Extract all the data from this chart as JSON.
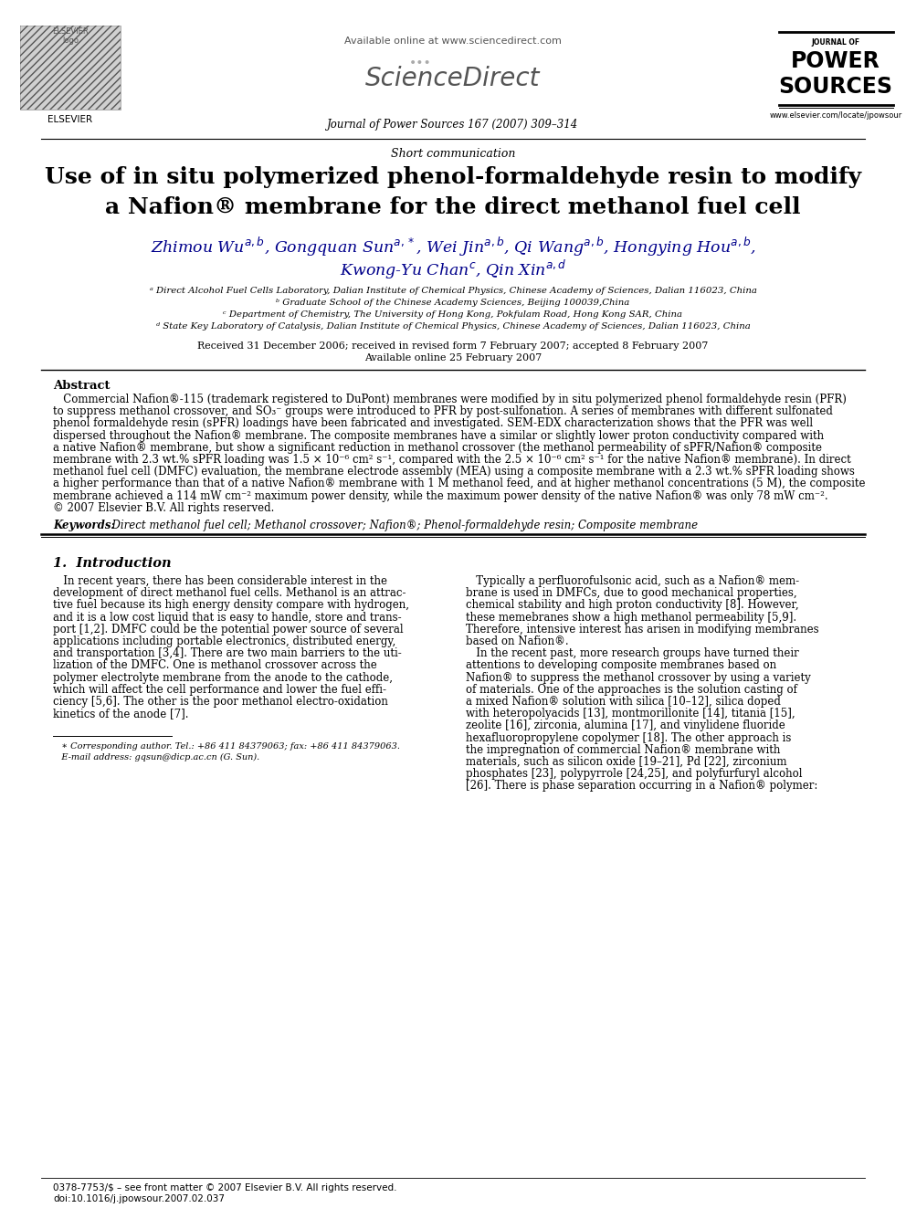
{
  "bg_color": "#ffffff",
  "title_line1": "Use of in situ polymerized phenol-formaldehyde resin to modify",
  "title_line2": "a Nafion® membrane for the direct methanol fuel cell",
  "section_label": "Short communication",
  "affil_a": "ᵃ Direct Alcohol Fuel Cells Laboratory, Dalian Institute of Chemical Physics, Chinese Academy of Sciences, Dalian 116023, China",
  "affil_b": "ᵇ Graduate School of the Chinese Academy Sciences, Beijing 100039,China",
  "affil_c": "ᶜ Department of Chemistry, The University of Hong Kong, Pokfulam Road, Hong Kong SAR, China",
  "affil_d": "ᵈ State Key Laboratory of Catalysis, Dalian Institute of Chemical Physics, Chinese Academy of Sciences, Dalian 116023, China",
  "received": "Received 31 December 2006; received in revised form 7 February 2007; accepted 8 February 2007",
  "available": "Available online 25 February 2007",
  "journal_name": "Journal of Power Sources 167 (2007) 309–314",
  "available_online": "Available online at www.sciencedirect.com",
  "website": "www.elsevier.com/locate/jpowsour",
  "abstract_title": "Abstract",
  "keywords_label": "Keywords:",
  "keywords_text": "  Direct methanol fuel cell; Methanol crossover; Nafion®; Phenol-formaldehyde resin; Composite membrane",
  "issn": "0378-7753/$ – see front matter © 2007 Elsevier B.V. All rights reserved.",
  "doi": "doi:10.1016/j.jpowsour.2007.02.037",
  "abstract_lines": [
    "   Commercial Nafion®-115 (trademark registered to DuPont) membranes were modified by in situ polymerized phenol formaldehyde resin (PFR)",
    "to suppress methanol crossover, and SO₃⁻ groups were introduced to PFR by post-sulfonation. A series of membranes with different sulfonated",
    "phenol formaldehyde resin (sPFR) loadings have been fabricated and investigated. SEM-EDX characterization shows that the PFR was well",
    "dispersed throughout the Nafion® membrane. The composite membranes have a similar or slightly lower proton conductivity compared with",
    "a native Nafion® membrane, but show a significant reduction in methanol crossover (the methanol permeability of sPFR/Nafion® composite",
    "membrane with 2.3 wt.% sPFR loading was 1.5 × 10⁻⁶ cm² s⁻¹, compared with the 2.5 × 10⁻⁶ cm² s⁻¹ for the native Nafion® membrane). In direct",
    "methanol fuel cell (DMFC) evaluation, the membrane electrode assembly (MEA) using a composite membrane with a 2.3 wt.% sPFR loading shows",
    "a higher performance than that of a native Nafion® membrane with 1 M methanol feed, and at higher methanol concentrations (5 M), the composite",
    "membrane achieved a 114 mW cm⁻² maximum power density, while the maximum power density of the native Nafion® was only 78 mW cm⁻².",
    "© 2007 Elsevier B.V. All rights reserved."
  ],
  "intro_col1_lines": [
    "   In recent years, there has been considerable interest in the",
    "development of direct methanol fuel cells. Methanol is an attrac-",
    "tive fuel because its high energy density compare with hydrogen,",
    "and it is a low cost liquid that is easy to handle, store and trans-",
    "port [1,2]. DMFC could be the potential power source of several",
    "applications including portable electronics, distributed energy,",
    "and transportation [3,4]. There are two main barriers to the uti-",
    "lization of the DMFC. One is methanol crossover across the",
    "polymer electrolyte membrane from the anode to the cathode,",
    "which will affect the cell performance and lower the fuel effi-",
    "ciency [5,6]. The other is the poor methanol electro-oxidation",
    "kinetics of the anode [7]."
  ],
  "intro_col2_lines": [
    "   Typically a perfluorofulsonic acid, such as a Nafion® mem-",
    "brane is used in DMFCs, due to good mechanical properties,",
    "chemical stability and high proton conductivity [8]. However,",
    "these memebranes show a high methanol permeability [5,9].",
    "Therefore, intensive interest has arisen in modifying membranes",
    "based on Nafion®.",
    "   In the recent past, more research groups have turned their",
    "attentions to developing composite membranes based on",
    "Nafion® to suppress the methanol crossover by using a variety",
    "of materials. One of the approaches is the solution casting of",
    "a mixed Nafion® solution with silica [10–12], silica doped",
    "with heteropolyacids [13], montmorillonite [14], titania [15],",
    "zeolite [16], zirconia, alumina [17], and vinylidene fluoride",
    "hexafluoropropylene copolymer [18]. The other approach is",
    "the impregnation of commercial Nafion® membrane with",
    "materials, such as silicon oxide [19–21], Pd [22], zirconium",
    "phosphates [23], polypyrrole [24,25], and polyfurfuryl alcohol",
    "[26]. There is phase separation occurring in a Nafion® polymer:"
  ]
}
